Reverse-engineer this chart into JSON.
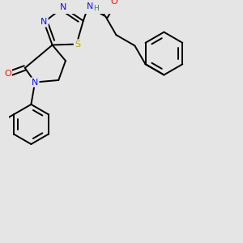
{
  "background_color": "#e5e5e5",
  "atom_colors": {
    "C": "#000000",
    "N": "#1010ee",
    "O": "#ee1010",
    "S": "#bbaa00",
    "H": "#407070"
  },
  "bond_color": "#000000",
  "bond_width": 1.4,
  "figsize": [
    3.0,
    3.0
  ],
  "dpi": 100
}
